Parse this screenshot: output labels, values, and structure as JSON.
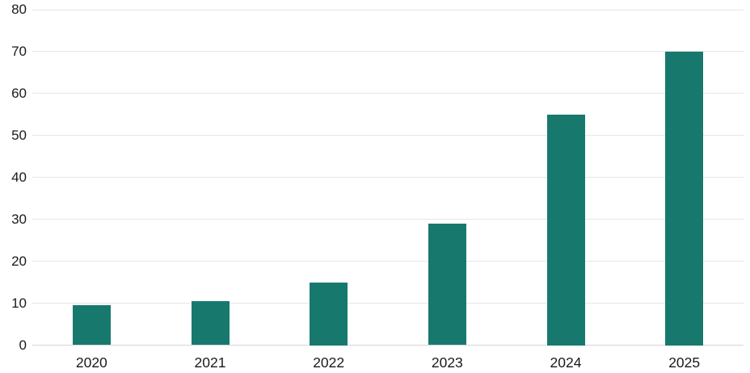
{
  "chart_data": {
    "type": "bar",
    "categories": [
      "2020",
      "2021",
      "2022",
      "2023",
      "2024",
      "2025"
    ],
    "values": [
      9.5,
      10.5,
      15,
      29,
      55,
      70
    ],
    "title": "",
    "xlabel": "",
    "ylabel": "",
    "ylim": [
      0,
      80
    ],
    "yticks": [
      0,
      10,
      20,
      30,
      40,
      50,
      60,
      70,
      80
    ],
    "grid": true,
    "legend_position": "none",
    "colors": {
      "bar": "#17796E",
      "gridline": "#e6e6e6",
      "baseline": "#d6d6d6",
      "label": "#1a1a1a",
      "background": "#ffffff"
    }
  }
}
